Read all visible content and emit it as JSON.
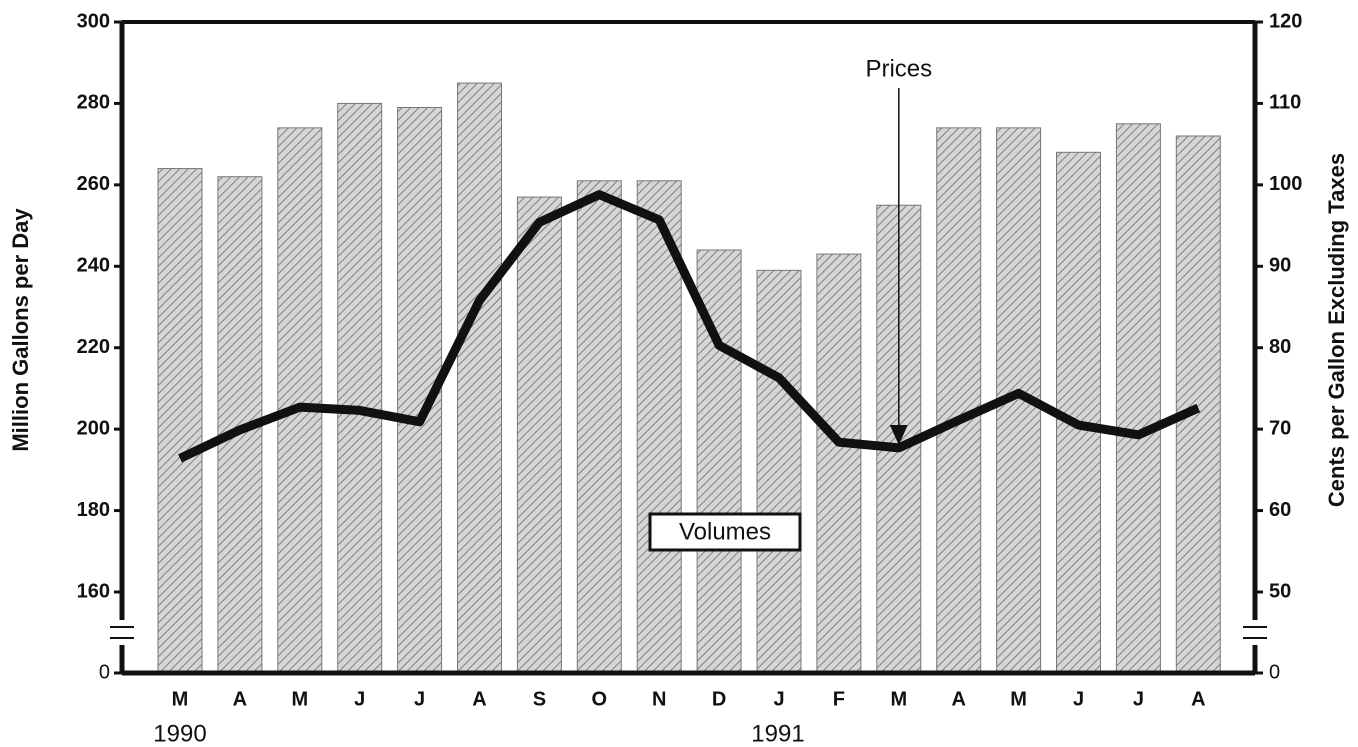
{
  "chart_data": {
    "type": "bar-line",
    "y_label": "Million Gallons per Day",
    "y2_label": "Cents per Gallon Excluding Taxes",
    "categories": [
      "M",
      "A",
      "M",
      "J",
      "J",
      "A",
      "S",
      "O",
      "N",
      "D",
      "J",
      "F",
      "M",
      "A",
      "M",
      "J",
      "J",
      "A"
    ],
    "year_labels": [
      "1990",
      "1991"
    ],
    "series": [
      {
        "name": "Volumes",
        "type": "bar",
        "color": "#bdbdbd",
        "values": [
          264,
          262,
          274,
          280,
          279,
          285,
          257,
          261,
          261,
          244,
          239,
          243,
          255,
          274,
          274,
          268,
          275,
          272
        ]
      },
      {
        "name": "Prices",
        "type": "line",
        "axis": "y2",
        "color": "#111111",
        "values": [
          66.4,
          69.9,
          72.7,
          72.3,
          70.9,
          85.8,
          95.4,
          98.8,
          95.7,
          80.3,
          76.3,
          68.4,
          67.7,
          71.1,
          74.4,
          70.5,
          69.3,
          72.6
        ]
      }
    ],
    "ylim": [
      0,
      300
    ],
    "yticks": [
      0,
      160,
      180,
      200,
      220,
      240,
      260,
      280,
      300
    ],
    "y2lim": [
      0,
      120
    ],
    "y2ticks": [
      0,
      50,
      60,
      70,
      80,
      90,
      100,
      110,
      120
    ]
  }
}
